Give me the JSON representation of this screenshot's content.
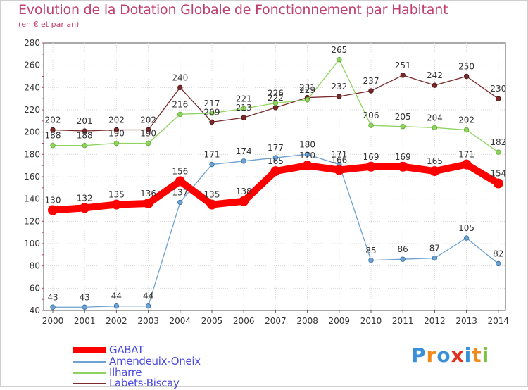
{
  "title": "Evolution de la Dotation Globale de Fonctionnement par Habitant",
  "subtitle": "(en € et par an)",
  "logo_text": "Proxiti",
  "chart_data": {
    "type": "line",
    "title": "Evolution de la Dotation Globale de Fonctionnement par Habitant",
    "ylabel": "(en € et par an)",
    "xlabel": "",
    "ylim": [
      40,
      280
    ],
    "yticks": [
      40,
      60,
      80,
      100,
      120,
      140,
      160,
      180,
      200,
      220,
      240,
      260,
      280
    ],
    "categories": [
      "2000",
      "2001",
      "2002",
      "2003",
      "2004",
      "2005",
      "2006",
      "2007",
      "2008",
      "2009",
      "2010",
      "2011",
      "2012",
      "2013",
      "2014"
    ],
    "series": [
      {
        "name": "GABAT",
        "color": "#ff0000",
        "values": [
          130,
          132,
          135,
          136,
          156,
          135,
          138,
          165,
          170,
          166,
          169,
          169,
          165,
          171,
          154
        ]
      },
      {
        "name": "Amendeuix-Oneix",
        "color": "#6fa2d1",
        "values": [
          43,
          43,
          44,
          44,
          137,
          171,
          174,
          177,
          180,
          171,
          85,
          86,
          87,
          105,
          82
        ]
      },
      {
        "name": "Ilharre",
        "color": "#8ed35f",
        "values": [
          188,
          188,
          190,
          190,
          216,
          217,
          221,
          226,
          229,
          265,
          206,
          205,
          204,
          202,
          182
        ]
      },
      {
        "name": "Labets-Biscay",
        "color": "#7a2a2a",
        "values": [
          202,
          201,
          202,
          202,
          240,
          209,
          213,
          222,
          231,
          232,
          237,
          251,
          242,
          250,
          230
        ]
      }
    ]
  }
}
